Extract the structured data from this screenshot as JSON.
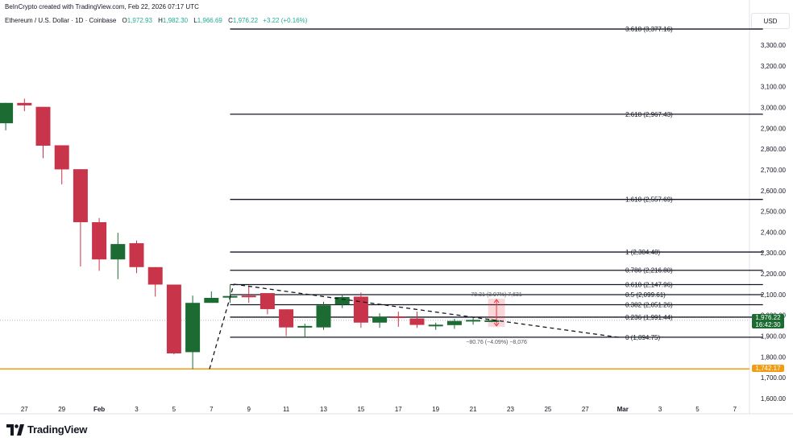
{
  "header": {
    "creator": "BeInCrypto created with TradingView.com, Feb 22, 2026 07:17 UTC",
    "symbol": "Ethereum / U.S. Dollar · 1D · Coinbase",
    "o_label": "O",
    "o_value": "1,972.93",
    "h_label": "H",
    "h_value": "1,982.30",
    "l_label": "L",
    "l_value": "1,966.69",
    "c_label": "C",
    "c_value": "1,976.22",
    "change": "+3.22 (+0.16%)"
  },
  "currency_label": "USD",
  "logo_text": "TradingView",
  "colors": {
    "up": "#1b6b32",
    "down": "#c8354a",
    "support": "#f39c12",
    "line": "#131722",
    "grid_text": "#131722"
  },
  "chart_data": {
    "type": "candlestick",
    "y_axis_ticks": [
      "3,300.00",
      "3,200.00",
      "3,100.00",
      "3,000.00",
      "2,900.00",
      "2,800.00",
      "2,700.00",
      "2,600.00",
      "2,500.00",
      "2,400.00",
      "2,300.00",
      "2,200.00",
      "2,100.00",
      "2,000.00",
      "1,900.00",
      "1,800.00",
      "1,700.00",
      "1,600.00"
    ],
    "x_axis_ticks": [
      {
        "label": "27",
        "day": -6
      },
      {
        "label": "29",
        "day": -4
      },
      {
        "label": "Feb",
        "day": -2
      },
      {
        "label": "3",
        "day": 0
      },
      {
        "label": "5",
        "day": 2
      },
      {
        "label": "7",
        "day": 4
      },
      {
        "label": "9",
        "day": 6
      },
      {
        "label": "11",
        "day": 8
      },
      {
        "label": "13",
        "day": 10
      },
      {
        "label": "15",
        "day": 12
      },
      {
        "label": "17",
        "day": 14
      },
      {
        "label": "19",
        "day": 16
      },
      {
        "label": "21",
        "day": 18
      },
      {
        "label": "23",
        "day": 20
      },
      {
        "label": "25",
        "day": 22
      },
      {
        "label": "27",
        "day": 24
      },
      {
        "label": "Mar",
        "day": 26
      },
      {
        "label": "3",
        "day": 28
      },
      {
        "label": "5",
        "day": 30
      },
      {
        "label": "7",
        "day": 32
      }
    ],
    "ylim": [
      1570,
      3420
    ],
    "candles": [
      {
        "date": "Jan 27",
        "o": 2924,
        "h": 3014,
        "l": 2890,
        "c": 3022
      },
      {
        "date": "Jan 28",
        "o": 3022,
        "h": 3042,
        "l": 2982,
        "c": 3010
      },
      {
        "date": "Jan 29",
        "o": 3003,
        "h": 3003,
        "l": 2756,
        "c": 2816
      },
      {
        "date": "Jan 30",
        "o": 2818,
        "h": 2818,
        "l": 2630,
        "c": 2702
      },
      {
        "date": "Jan 31",
        "o": 2703,
        "h": 2703,
        "l": 2235,
        "c": 2448
      },
      {
        "date": "Feb 1",
        "o": 2448,
        "h": 2468,
        "l": 2214,
        "c": 2269
      },
      {
        "date": "Feb 2",
        "o": 2269,
        "h": 2397,
        "l": 2174,
        "c": 2343
      },
      {
        "date": "Feb 3",
        "o": 2347,
        "h": 2360,
        "l": 2203,
        "c": 2232
      },
      {
        "date": "Feb 4",
        "o": 2232,
        "h": 2232,
        "l": 2090,
        "c": 2148
      },
      {
        "date": "Feb 5",
        "o": 2148,
        "h": 2148,
        "l": 1812,
        "c": 1817
      },
      {
        "date": "Feb 6",
        "o": 1823,
        "h": 2095,
        "l": 1742,
        "c": 2060
      },
      {
        "date": "Feb 7",
        "o": 2060,
        "h": 2115,
        "l": 2060,
        "c": 2084
      },
      {
        "date": "Feb 8",
        "o": 2087,
        "h": 2145,
        "l": 2060,
        "c": 2093
      },
      {
        "date": "Feb 9",
        "o": 2095,
        "h": 2140,
        "l": 2060,
        "c": 2087
      },
      {
        "date": "Feb 10",
        "o": 2107,
        "h": 2107,
        "l": 2005,
        "c": 2030
      },
      {
        "date": "Feb 11",
        "o": 2029,
        "h": 2029,
        "l": 1900,
        "c": 1942
      },
      {
        "date": "Feb 12",
        "o": 1942,
        "h": 1960,
        "l": 1895,
        "c": 1949
      },
      {
        "date": "Feb 13",
        "o": 1942,
        "h": 2065,
        "l": 1930,
        "c": 2048
      },
      {
        "date": "Feb 14",
        "o": 2052,
        "h": 2100,
        "l": 2035,
        "c": 2088
      },
      {
        "date": "Feb 15",
        "o": 2090,
        "h": 2110,
        "l": 1940,
        "c": 1965
      },
      {
        "date": "Feb 16",
        "o": 1965,
        "h": 2010,
        "l": 1940,
        "c": 1993
      },
      {
        "date": "Feb 17",
        "o": 1995,
        "h": 2018,
        "l": 1945,
        "c": 1989
      },
      {
        "date": "Feb 18",
        "o": 1985,
        "h": 2018,
        "l": 1940,
        "c": 1954
      },
      {
        "date": "Feb 19",
        "o": 1950,
        "h": 1965,
        "l": 1930,
        "c": 1955
      },
      {
        "date": "Feb 20",
        "o": 1953,
        "h": 1983,
        "l": 1935,
        "c": 1973
      },
      {
        "date": "Feb 21",
        "o": 1973,
        "h": 1990,
        "l": 1955,
        "c": 1978
      },
      {
        "date": "Feb 22",
        "o": 1973,
        "h": 1982,
        "l": 1967,
        "c": 1976
      }
    ],
    "fib_levels": [
      {
        "ratio": 0,
        "price": 1894.75,
        "label": "0 (1,894.75)"
      },
      {
        "ratio": 0.236,
        "price": 1991.44,
        "label": "0.236 (1,991.44)"
      },
      {
        "ratio": 0.382,
        "price": 2051.26,
        "label": "0.382 (2,051.26)"
      },
      {
        "ratio": 0.5,
        "price": 2099.61,
        "label": "0.5 (2,099.61)"
      },
      {
        "ratio": 0.618,
        "price": 2147.96,
        "label": "0.618 (2,147.96)"
      },
      {
        "ratio": 0.786,
        "price": 2216.8,
        "label": "0.786 (2,216.80)"
      },
      {
        "ratio": 1,
        "price": 2304.48,
        "label": "1 (2,304.48)"
      },
      {
        "ratio": 1.618,
        "price": 2557.69,
        "label": "1.618 (2,557.69)"
      },
      {
        "ratio": 2.618,
        "price": 2967.43,
        "label": "2.618 (2,967.43)"
      },
      {
        "ratio": 3.618,
        "price": 3377.16,
        "label": "3.618 (3,377.16)"
      }
    ],
    "fib_start_day": 5,
    "fib_end_day": 33.5,
    "trend_segments": [
      {
        "from_day": 3.9,
        "from_price": 1742,
        "to_day": 5.2,
        "to_price": 2150
      },
      {
        "from_day": 5.2,
        "from_price": 2150,
        "to_day": 25.8,
        "to_price": 1894
      }
    ],
    "support": {
      "price": 1742.17,
      "label": "1,742.17"
    },
    "last_price": {
      "price": 1976.22,
      "label": "1,976.22",
      "countdown": "16:42:30"
    },
    "measure_box": {
      "from_day": 18.8,
      "to_day": 19.7,
      "top_price": 2080,
      "bottom_price": 1945
    },
    "measure_upper_text": "78.31 (3.97%) 7,631",
    "measure_lower_text": "−80.76 (−4.09%) −8,076"
  }
}
